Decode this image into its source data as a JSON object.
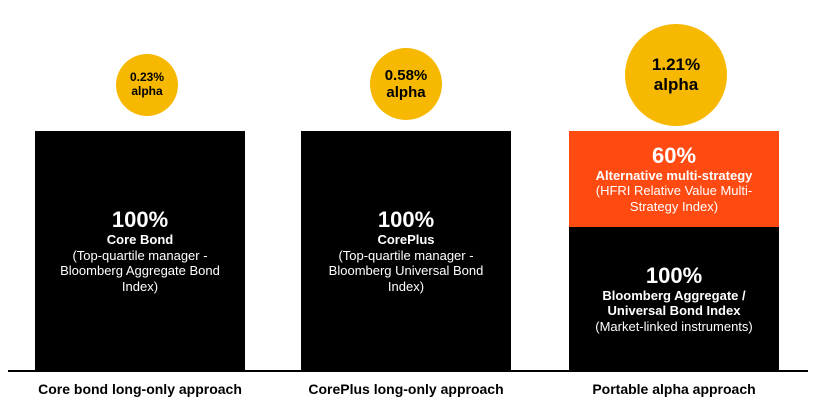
{
  "colors": {
    "alpha_circle": "#f6b800",
    "core_block": "#000000",
    "alternative_block": "#ff4a12",
    "text_on_block": "#ffffff"
  },
  "columns": [
    {
      "alpha_value": "0.23%",
      "alpha_label": "alpha",
      "block": {
        "percent": "100%",
        "name": "Core Bond",
        "description": "(Top-quartile manager - Bloomberg Aggregate Bond Index)"
      },
      "label": "Core bond long-only approach"
    },
    {
      "alpha_value": "0.58%",
      "alpha_label": "alpha",
      "block": {
        "percent": "100%",
        "name": "CorePlus",
        "description": "(Top-quartile manager - Bloomberg Universal Bond Index)"
      },
      "label": "CorePlus long-only approach"
    },
    {
      "alpha_value": "1.21%",
      "alpha_label": "alpha",
      "top_block": {
        "percent": "60%",
        "name": "Alternative multi-strategy",
        "description": "(HFRI Relative Value Multi-Strategy Index)"
      },
      "block": {
        "percent": "100%",
        "name": "Bloomberg Aggregate / Universal Bond Index",
        "description": "(Market-linked instruments)"
      },
      "label": "Portable alpha approach"
    }
  ]
}
